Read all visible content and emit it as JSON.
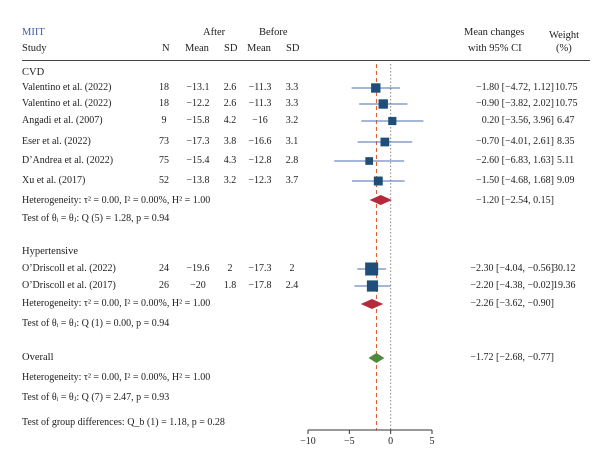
{
  "header": {
    "group_label": "MIIT",
    "study": "Study",
    "n": "N",
    "after": "After",
    "before": "Before",
    "mean": "Mean",
    "sd": "SD",
    "effect_line1": "Mean changes",
    "effect_line2": "with 95% CI",
    "weight_line1": "Weight",
    "weight_line2": "(%)"
  },
  "groups": [
    {
      "name": "CVD",
      "studies": [
        {
          "study": "Valentino et al. (2022)",
          "n": "18",
          "after_mean": "−13.1",
          "after_sd": "2.6",
          "before_mean": "−11.3",
          "before_sd": "3.3",
          "ci_text": "−1.80 [−4.72, 1.12]",
          "weight": "10.75"
        },
        {
          "study": "Valentino et al. (2022)",
          "n": "18",
          "after_mean": "−12.2",
          "after_sd": "2.6",
          "before_mean": "−11.3",
          "before_sd": "3.3",
          "ci_text": "−0.90 [−3.82, 2.02]",
          "weight": "10.75"
        },
        {
          "study": "Angadi et al. (2007)",
          "n": "9",
          "after_mean": "−15.8",
          "after_sd": "4.2",
          "before_mean": "−16",
          "before_sd": "3.2",
          "ci_text": "0.20 [−3.56, 3.96]",
          "weight": "6.47"
        },
        {
          "study": "Eser et al. (2022)",
          "n": "73",
          "after_mean": "−17.3",
          "after_sd": "3.8",
          "before_mean": "−16.6",
          "before_sd": "3.1",
          "ci_text": "−0.70 [−4.01, 2.61]",
          "weight": "8.35"
        },
        {
          "study": "D’Andrea et al. (2022)",
          "n": "75",
          "after_mean": "−15.4",
          "after_sd": "4.3",
          "before_mean": "−12.8",
          "before_sd": "2.8",
          "ci_text": "−2.60 [−6.83, 1.63]",
          "weight": "5.11"
        },
        {
          "study": "Xu et al. (2017)",
          "n": "52",
          "after_mean": "−13.8",
          "after_sd": "3.2",
          "before_mean": "−12.3",
          "before_sd": "3.7",
          "ci_text": "−1.50 [−4.68, 1.68]",
          "weight": "9.09"
        }
      ],
      "heterogeneity": "Heterogeneity: τ² = 0.00, I² = 0.00%, H² = 1.00",
      "test": "Test of θᵢ = θⱼ: Q (5) = 1.28, p = 0.94",
      "pooled_text": "−1.20 [−2.54, 0.15]"
    },
    {
      "name": "Hypertensive",
      "studies": [
        {
          "study": "O’Driscoll et al. (2022)",
          "n": "24",
          "after_mean": "−19.6",
          "after_sd": "2",
          "before_mean": "−17.3",
          "before_sd": "2",
          "ci_text": "−2.30 [−4.04, −0.56]",
          "weight": "30.12"
        },
        {
          "study": "O’Driscoll et al. (2017)",
          "n": "26",
          "after_mean": "−20",
          "after_sd": "1.8",
          "before_mean": "−17.8",
          "before_sd": "2.4",
          "ci_text": "−2.20 [−4.38, −0.02]",
          "weight": "19.36"
        }
      ],
      "heterogeneity": "Heterogeneity: τ² = 0.00, I² = 0.00%, H² = 1.00",
      "test": "Test of θᵢ = θⱼ: Q (1) = 0.00, p = 0.94",
      "pooled_text": "−2.26 [−3.62, −0.90]"
    }
  ],
  "overall": {
    "label": "Overall",
    "pooled_text": "−1.72 [−2.68, −0.77]",
    "heterogeneity": "Heterogeneity: τ² = 0.00, I² = 0.00%, H² = 1.00",
    "test": "Test of θᵢ = θⱼ: Q (7) = 2.47, p = 0.93"
  },
  "group_diff": "Test of group differences: Q_b (1) = 1.18, p = 0.28",
  "colors": {
    "square": "#1f4e79",
    "ci_line": "#4a6fb3",
    "subgroup_diamond": "#b5293a",
    "overall_diamond": "#4c8a3a",
    "overall_line": "#e0552a",
    "null_line": "#888888"
  },
  "chart_data": {
    "type": "forest",
    "xlim": [
      -10,
      5
    ],
    "x_ticks": [
      -10,
      -5,
      0,
      5
    ],
    "studies": [
      {
        "study": "Valentino et al. (2022)",
        "group": "CVD",
        "est": -1.8,
        "lo": -4.72,
        "hi": 1.12,
        "weight": 10.75
      },
      {
        "study": "Valentino et al. (2022)",
        "group": "CVD",
        "est": -0.9,
        "lo": -3.82,
        "hi": 2.02,
        "weight": 10.75
      },
      {
        "study": "Angadi et al. (2007)",
        "group": "CVD",
        "est": 0.2,
        "lo": -3.56,
        "hi": 3.96,
        "weight": 6.47
      },
      {
        "study": "Eser et al. (2022)",
        "group": "CVD",
        "est": -0.7,
        "lo": -4.01,
        "hi": 2.61,
        "weight": 8.35
      },
      {
        "study": "D’Andrea et al. (2022)",
        "group": "CVD",
        "est": -2.6,
        "lo": -6.83,
        "hi": 1.63,
        "weight": 5.11
      },
      {
        "study": "Xu et al. (2017)",
        "group": "CVD",
        "est": -1.5,
        "lo": -4.68,
        "hi": 1.68,
        "weight": 9.09
      },
      {
        "study": "O’Driscoll et al. (2022)",
        "group": "Hypertensive",
        "est": -2.3,
        "lo": -4.04,
        "hi": -0.56,
        "weight": 30.12
      },
      {
        "study": "O’Driscoll et al. (2017)",
        "group": "Hypertensive",
        "est": -2.2,
        "lo": -4.38,
        "hi": -0.02,
        "weight": 19.36
      }
    ],
    "subgroup_pooled": [
      {
        "group": "CVD",
        "est": -1.2,
        "lo": -2.54,
        "hi": 0.15
      },
      {
        "group": "Hypertensive",
        "est": -2.26,
        "lo": -3.62,
        "hi": -0.9
      }
    ],
    "overall": {
      "est": -1.72,
      "lo": -2.68,
      "hi": -0.77
    },
    "null_line": 0
  }
}
